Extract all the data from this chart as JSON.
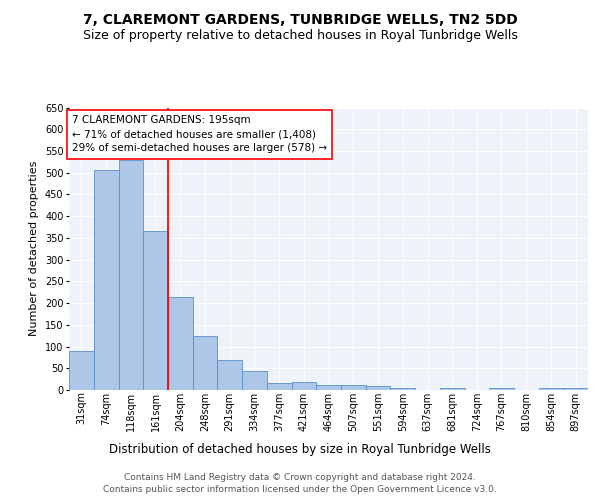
{
  "title": "7, CLAREMONT GARDENS, TUNBRIDGE WELLS, TN2 5DD",
  "subtitle": "Size of property relative to detached houses in Royal Tunbridge Wells",
  "xlabel": "Distribution of detached houses by size in Royal Tunbridge Wells",
  "ylabel": "Number of detached properties",
  "footer_line1": "Contains HM Land Registry data © Crown copyright and database right 2024.",
  "footer_line2": "Contains public sector information licensed under the Open Government Licence v3.0.",
  "annotation_line1": "7 CLAREMONT GARDENS: 195sqm",
  "annotation_line2": "← 71% of detached houses are smaller (1,408)",
  "annotation_line3": "29% of semi-detached houses are larger (578) →",
  "bar_color": "#aec6e8",
  "bar_edge_color": "#5b8fc9",
  "redline_x": 204,
  "categories": [
    "31sqm",
    "74sqm",
    "118sqm",
    "161sqm",
    "204sqm",
    "248sqm",
    "291sqm",
    "334sqm",
    "377sqm",
    "421sqm",
    "464sqm",
    "507sqm",
    "551sqm",
    "594sqm",
    "637sqm",
    "681sqm",
    "724sqm",
    "767sqm",
    "810sqm",
    "854sqm",
    "897sqm"
  ],
  "bin_edges": [
    31,
    74,
    118,
    161,
    204,
    248,
    291,
    334,
    377,
    421,
    464,
    507,
    551,
    594,
    637,
    681,
    724,
    767,
    810,
    854,
    897,
    940
  ],
  "values": [
    90,
    507,
    530,
    365,
    215,
    125,
    70,
    43,
    16,
    19,
    11,
    11,
    9,
    5,
    0,
    5,
    0,
    4,
    0,
    4,
    4
  ],
  "ylim": [
    0,
    650
  ],
  "yticks": [
    0,
    50,
    100,
    150,
    200,
    250,
    300,
    350,
    400,
    450,
    500,
    550,
    600,
    650
  ],
  "background_color": "#eef2f9",
  "grid_color": "#ffffff",
  "title_fontsize": 10,
  "subtitle_fontsize": 9,
  "xlabel_fontsize": 8.5,
  "ylabel_fontsize": 8,
  "tick_fontsize": 7,
  "footer_fontsize": 6.5,
  "annotation_fontsize": 7.5
}
